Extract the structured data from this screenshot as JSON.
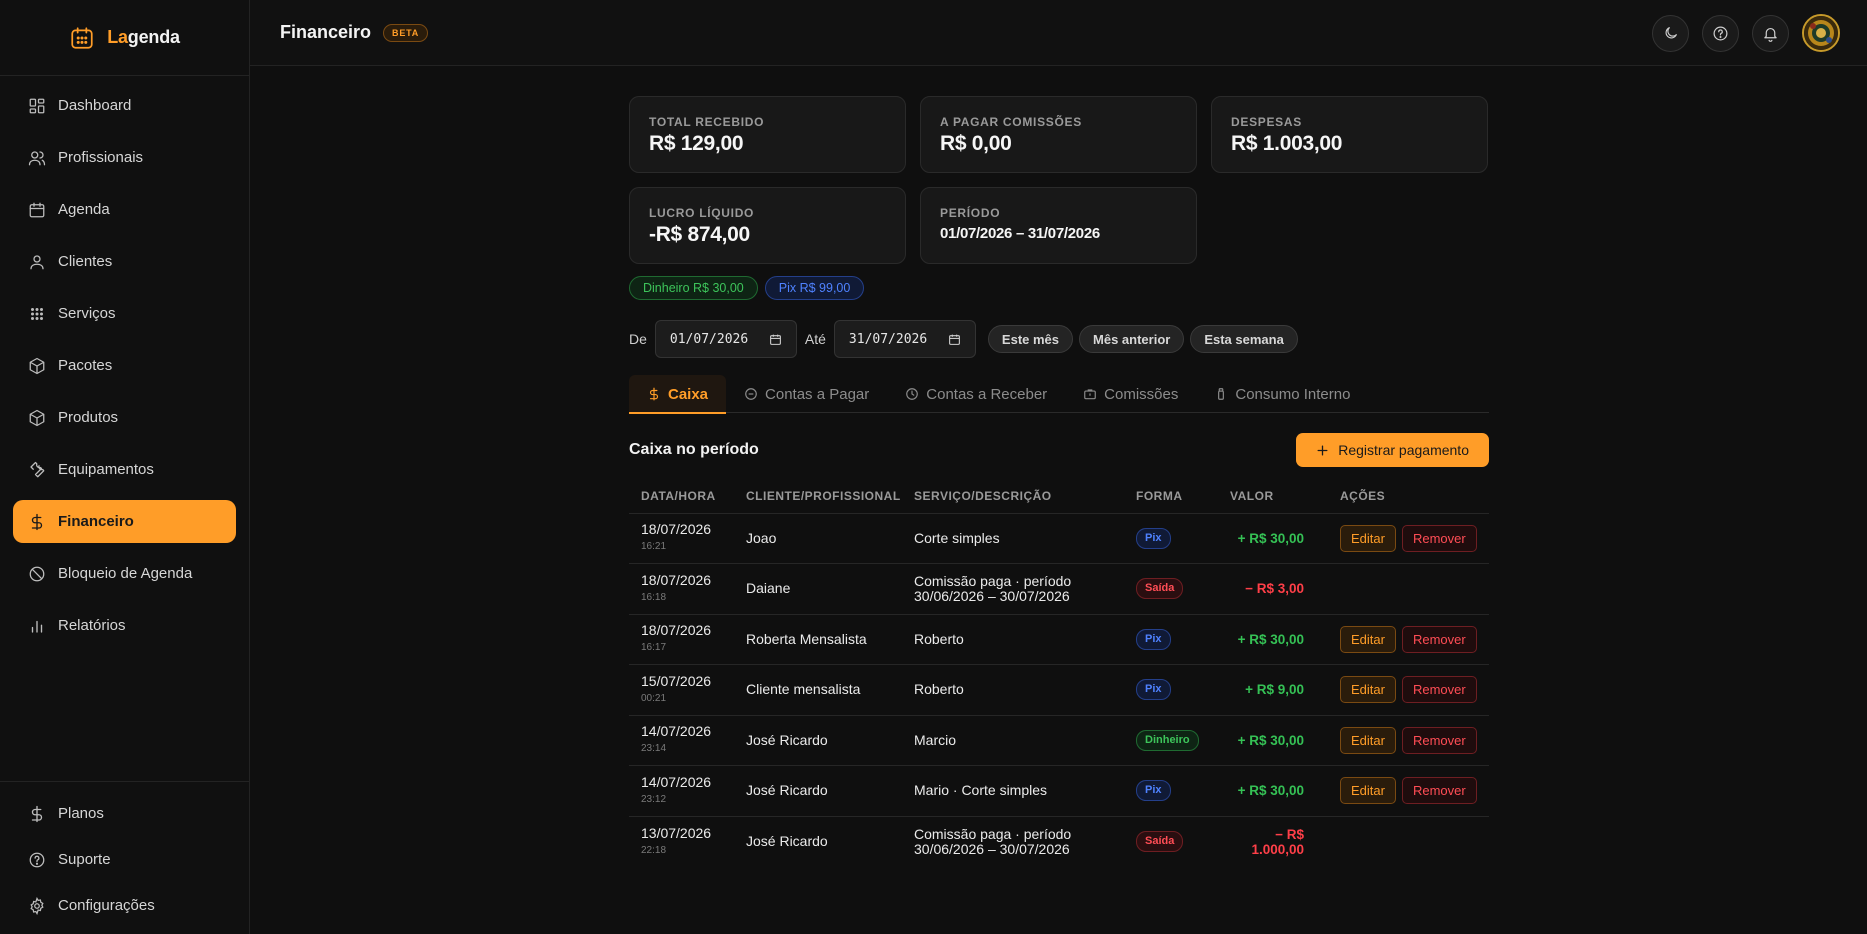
{
  "brand": {
    "prefix": "La",
    "rest": "genda"
  },
  "sidebar": {
    "items": [
      {
        "label": "Dashboard",
        "icon": "dashboard-icon"
      },
      {
        "label": "Profissionais",
        "icon": "users-icon"
      },
      {
        "label": "Agenda",
        "icon": "calendar-icon"
      },
      {
        "label": "Clientes",
        "icon": "user-icon"
      },
      {
        "label": "Serviços",
        "icon": "services-icon"
      },
      {
        "label": "Pacotes",
        "icon": "box-icon"
      },
      {
        "label": "Produtos",
        "icon": "box-icon"
      },
      {
        "label": "Equipamentos",
        "icon": "wrench-icon"
      },
      {
        "label": "Financeiro",
        "icon": "dollar-icon",
        "active": true
      },
      {
        "label": "Bloqueio de Agenda",
        "icon": "ban-icon"
      },
      {
        "label": "Relatórios",
        "icon": "bar-chart-icon"
      }
    ],
    "bottom": [
      {
        "label": "Planos",
        "icon": "dollar-icon"
      },
      {
        "label": "Suporte",
        "icon": "help-icon"
      },
      {
        "label": "Configurações",
        "icon": "gear-icon"
      }
    ]
  },
  "header": {
    "title": "Financeiro",
    "badge": "BETA"
  },
  "summary": [
    {
      "label": "TOTAL RECEBIDO",
      "value": "R$ 129,00"
    },
    {
      "label": "A PAGAR COMISSÕES",
      "value": "R$ 0,00"
    },
    {
      "label": "DESPESAS",
      "value": "R$ 1.003,00"
    },
    {
      "label": "LUCRO LÍQUIDO",
      "value": "-R$ 874,00"
    },
    {
      "label": "PERÍODO",
      "value": "01/07/2026 – 31/07/2026"
    }
  ],
  "chips": {
    "dinheiro": "Dinheiro R$ 30,00",
    "pix": "Pix R$ 99,00"
  },
  "filters": {
    "from_label": "De",
    "from_value": "01/07/2026",
    "to_label": "Até",
    "to_value": "31/07/2026",
    "presets": [
      "Este mês",
      "Mês anterior",
      "Esta semana"
    ]
  },
  "tabs": [
    {
      "label": "Caixa",
      "active": true
    },
    {
      "label": "Contas a Pagar"
    },
    {
      "label": "Contas a Receber"
    },
    {
      "label": "Comissões"
    },
    {
      "label": "Consumo Interno"
    }
  ],
  "section": {
    "title": "Caixa no período",
    "add_button": "Registrar pagamento"
  },
  "table": {
    "columns": [
      "DATA/HORA",
      "CLIENTE/PROFISSIONAL",
      "SERVIÇO/DESCRIÇÃO",
      "FORMA",
      "VALOR",
      "AÇÕES"
    ],
    "edit_label": "Editar",
    "remove_label": "Remover",
    "rows": [
      {
        "date": "18/07/2026",
        "time": "16:21",
        "person": "Joao",
        "desc1": "Corte simples",
        "desc2": "",
        "forma": "Pix",
        "kind": "pix",
        "value": "+ R$ 30,00",
        "sign": "pos",
        "actions": true
      },
      {
        "date": "18/07/2026",
        "time": "16:18",
        "person": "Daiane",
        "desc1": "Comissão paga · período",
        "desc2": "30/06/2026 – 30/07/2026",
        "forma": "Saída",
        "kind": "saida",
        "value": "− R$ 3,00",
        "sign": "neg",
        "actions": false
      },
      {
        "date": "18/07/2026",
        "time": "16:17",
        "person": "Roberta Mensalista",
        "desc1": "Roberto",
        "desc2": "",
        "forma": "Pix",
        "kind": "pix",
        "value": "+ R$ 30,00",
        "sign": "pos",
        "actions": true
      },
      {
        "date": "15/07/2026",
        "time": "00:21",
        "person": "Cliente mensalista",
        "desc1": "Roberto",
        "desc2": "",
        "forma": "Pix",
        "kind": "pix",
        "value": "+ R$ 9,00",
        "sign": "pos",
        "actions": true
      },
      {
        "date": "14/07/2026",
        "time": "23:14",
        "person": "José Ricardo",
        "desc1": "Marcio",
        "desc2": "",
        "forma": "Dinheiro",
        "kind": "dinheiro",
        "value": "+ R$ 30,00",
        "sign": "pos",
        "actions": true
      },
      {
        "date": "14/07/2026",
        "time": "23:12",
        "person": "José Ricardo",
        "desc1": "Mario · Corte simples",
        "desc2": "",
        "forma": "Pix",
        "kind": "pix",
        "value": "+ R$ 30,00",
        "sign": "pos",
        "actions": true
      },
      {
        "date": "13/07/2026",
        "time": "22:18",
        "person": "José Ricardo",
        "desc1": "Comissão paga · período",
        "desc2": "30/06/2026 – 30/07/2026",
        "forma": "Saída",
        "kind": "saida",
        "value": "− R$ 1.000,00",
        "sign": "neg",
        "actions": false
      }
    ]
  },
  "colors": {
    "accent": "#ff9d28",
    "positive": "#35c155",
    "negative": "#ff3f48",
    "pix": "#4f82ff"
  }
}
